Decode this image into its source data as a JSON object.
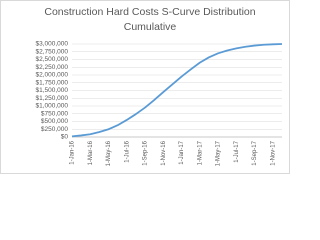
{
  "chart_data": {
    "type": "line",
    "title_lines": [
      "Construction Hard Costs S-Curve Distribution",
      "Cumulative"
    ],
    "categories": [
      "1-Jan-16",
      null,
      "1-Mar-16",
      null,
      "1-May-16",
      null,
      "1-Jul-16",
      null,
      "1-Sep-16",
      null,
      "1-Nov-16",
      null,
      "1-Jan-17",
      null,
      "1-Mar-17",
      null,
      "1-May-17",
      null,
      "1-Jul-17",
      null,
      "1-Sep-17",
      null,
      "1-Nov-17",
      null
    ],
    "series": [
      {
        "color": "#5b9bd5",
        "values": [
          20000,
          50000,
          90000,
          160000,
          250000,
          380000,
          550000,
          740000,
          950000,
          1190000,
          1450000,
          1700000,
          1950000,
          2180000,
          2400000,
          2570000,
          2700000,
          2790000,
          2860000,
          2910000,
          2950000,
          2975000,
          2990000,
          3000000
        ]
      }
    ],
    "ylim": [
      0,
      3000000
    ],
    "yticks": [
      {
        "value": 0,
        "label": "$0"
      },
      {
        "value": 250000,
        "label": "$250,000"
      },
      {
        "value": 500000,
        "label": "$500,000"
      },
      {
        "value": 750000,
        "label": "$750,000"
      },
      {
        "value": 1000000,
        "label": "$1,000,000"
      },
      {
        "value": 1250000,
        "label": "$1,250,000"
      },
      {
        "value": 1500000,
        "label": "$1,500,000"
      },
      {
        "value": 1750000,
        "label": "$1,750,000"
      },
      {
        "value": 2000000,
        "label": "$2,000,000"
      },
      {
        "value": 2250000,
        "label": "$2,250,000"
      },
      {
        "value": 2500000,
        "label": "$2,500,000"
      },
      {
        "value": 2750000,
        "label": "$2,750,000"
      },
      {
        "value": 3000000,
        "label": "$3,000,000"
      }
    ],
    "grid": true
  }
}
